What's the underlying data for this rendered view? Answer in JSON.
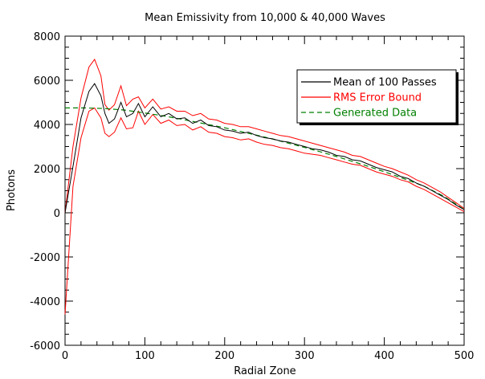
{
  "chart_data": {
    "type": "line",
    "title": "Mean Emissivity from 10,000 & 40,000 Waves",
    "xlabel": "Radial Zone",
    "ylabel": "Photons",
    "xlim": [
      0,
      500
    ],
    "ylim": [
      -6000,
      8000
    ],
    "xticks": [
      0,
      100,
      200,
      300,
      400,
      500
    ],
    "xtick_labels": [
      "0",
      "100",
      "200",
      "300",
      "400",
      "500"
    ],
    "yticks": [
      -6000,
      -4000,
      -2000,
      0,
      2000,
      4000,
      6000,
      8000
    ],
    "ytick_labels": [
      "-6000",
      "-4000",
      "-2000",
      "0",
      "2000",
      "4000",
      "6000",
      "8000"
    ],
    "grid": false,
    "legend_position": "top-right",
    "series": [
      {
        "name": "Mean of 100 Passes",
        "color": "#000000",
        "dash": "solid",
        "x": [
          0,
          10,
          20,
          30,
          37,
          45,
          50,
          55,
          62,
          70,
          77,
          85,
          92,
          100,
          110,
          120,
          130,
          140,
          150,
          160,
          170,
          180,
          190,
          200,
          210,
          220,
          230,
          240,
          250,
          260,
          270,
          280,
          290,
          300,
          310,
          320,
          330,
          340,
          350,
          360,
          370,
          380,
          390,
          400,
          410,
          420,
          430,
          440,
          450,
          460,
          470,
          480,
          490,
          500
        ],
        "y": [
          0,
          2100,
          4300,
          5500,
          5850,
          5300,
          4500,
          4050,
          4250,
          5000,
          4350,
          4500,
          4950,
          4350,
          4800,
          4350,
          4500,
          4250,
          4300,
          4050,
          4200,
          3950,
          3900,
          3750,
          3700,
          3600,
          3650,
          3500,
          3400,
          3350,
          3250,
          3200,
          3100,
          3000,
          2900,
          2850,
          2750,
          2600,
          2550,
          2400,
          2350,
          2200,
          2050,
          1950,
          1850,
          1650,
          1550,
          1350,
          1200,
          1000,
          800,
          600,
          350,
          150
        ]
      },
      {
        "name": "RMS Error Bound",
        "color": "#ff0000",
        "dash": "solid",
        "x": [
          0,
          10,
          20,
          30,
          37,
          45,
          50,
          55,
          62,
          70,
          77,
          85,
          92,
          100,
          110,
          120,
          130,
          140,
          150,
          160,
          170,
          180,
          190,
          200,
          210,
          220,
          230,
          240,
          250,
          260,
          270,
          280,
          290,
          300,
          310,
          320,
          330,
          340,
          350,
          360,
          370,
          380,
          390,
          400,
          410,
          420,
          430,
          440,
          450,
          460,
          470,
          480,
          490,
          500
        ],
        "y_upper": [
          0,
          3000,
          5200,
          6600,
          6950,
          6200,
          4900,
          4650,
          4900,
          5750,
          4850,
          5150,
          5250,
          4750,
          5150,
          4700,
          4800,
          4600,
          4600,
          4400,
          4500,
          4250,
          4200,
          4050,
          4000,
          3900,
          3900,
          3800,
          3700,
          3600,
          3500,
          3450,
          3350,
          3250,
          3150,
          3050,
          2950,
          2850,
          2750,
          2600,
          2550,
          2400,
          2250,
          2100,
          2000,
          1850,
          1700,
          1500,
          1350,
          1150,
          950,
          700,
          450,
          200
        ],
        "y_lower": [
          -4600,
          1200,
          3400,
          4600,
          4750,
          4300,
          3600,
          3450,
          3650,
          4300,
          3800,
          3850,
          4600,
          4000,
          4450,
          4050,
          4200,
          3950,
          4000,
          3750,
          3900,
          3650,
          3600,
          3450,
          3400,
          3300,
          3350,
          3200,
          3100,
          3050,
          2950,
          2900,
          2800,
          2700,
          2650,
          2600,
          2500,
          2400,
          2300,
          2200,
          2150,
          2000,
          1850,
          1750,
          1650,
          1500,
          1400,
          1200,
          1050,
          850,
          650,
          450,
          250,
          50
        ]
      },
      {
        "name": "Generated Data",
        "color": "#008000",
        "dash": "dashed",
        "x": [
          0,
          25,
          50,
          75,
          100,
          125,
          150,
          175,
          200,
          225,
          250,
          275,
          300,
          325,
          350,
          375,
          400,
          425,
          450,
          475,
          500
        ],
        "y": [
          4750,
          4750,
          4720,
          4650,
          4520,
          4380,
          4210,
          4030,
          3850,
          3640,
          3430,
          3200,
          2960,
          2710,
          2440,
          2160,
          1860,
          1540,
          1200,
          740,
          150
        ]
      }
    ]
  }
}
